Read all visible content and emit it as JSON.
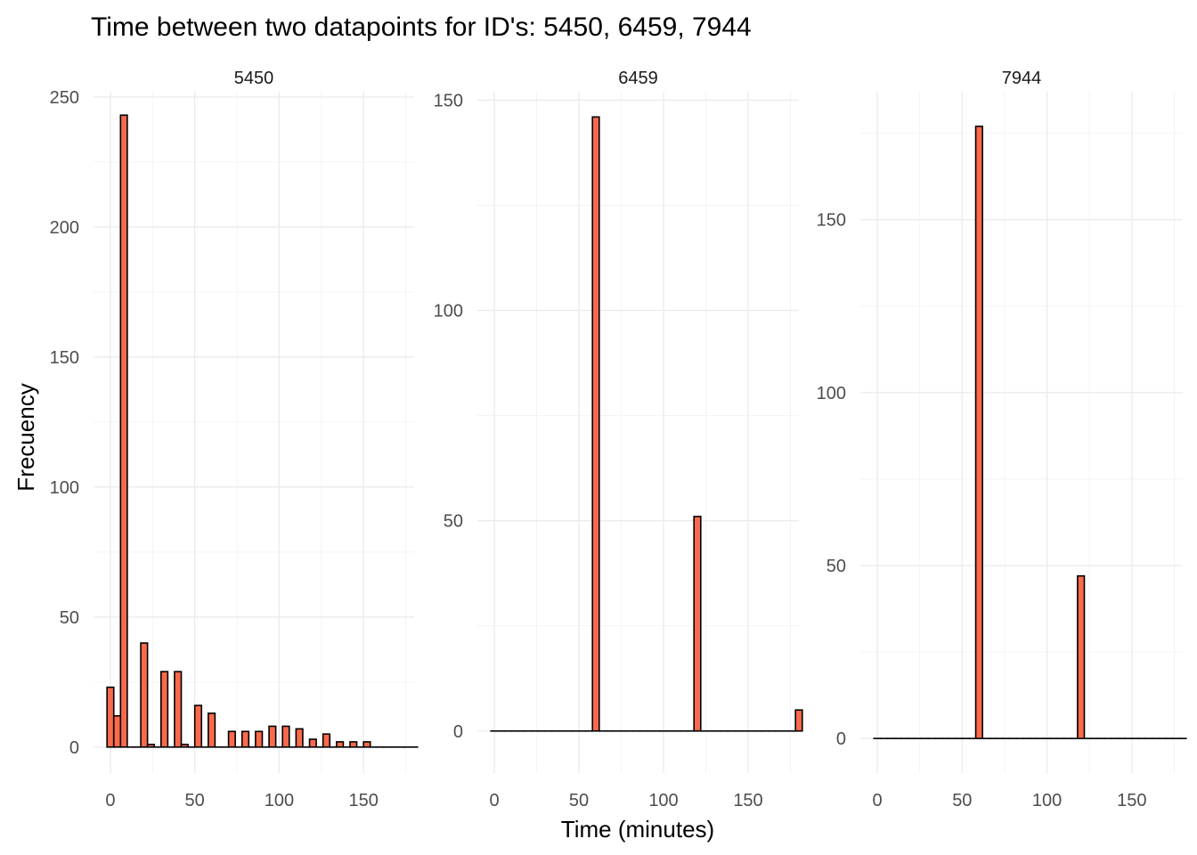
{
  "chart_data": {
    "type": "bar",
    "title": "Time between two datapoints for ID's: 5450, 6459, 7944",
    "xlabel": "Time (minutes)",
    "ylabel": "Frecuency",
    "bar_color": "#f86a4b",
    "grid": true,
    "xlim": [
      -10,
      180
    ],
    "panels": [
      {
        "name": "5450",
        "ylim": [
          -10,
          252
        ],
        "x_ticks": [
          0,
          50,
          100,
          150
        ],
        "y_ticks": [
          0,
          50,
          100,
          150,
          200,
          250
        ],
        "x": [
          0,
          4,
          8,
          12,
          16,
          20,
          24,
          28,
          32,
          36,
          40,
          44,
          48,
          52,
          56,
          60,
          64,
          68,
          72,
          76,
          80,
          84,
          88,
          92,
          96,
          100,
          104,
          108,
          112,
          116,
          120,
          124,
          128,
          132,
          136,
          140,
          144,
          148,
          152,
          156,
          160,
          164,
          168,
          172,
          176,
          180
        ],
        "values": [
          23,
          12,
          243,
          0,
          0,
          40,
          1,
          0,
          29,
          0,
          29,
          1,
          0,
          16,
          0,
          13,
          0,
          0,
          6,
          0,
          6,
          0,
          6,
          0,
          8,
          0,
          8,
          0,
          7,
          0,
          3,
          0,
          5,
          0,
          2,
          0,
          2,
          0,
          2,
          0,
          0,
          0,
          0,
          0,
          0,
          0
        ]
      },
      {
        "name": "6459",
        "ylim": [
          -10,
          152
        ],
        "x_ticks": [
          0,
          50,
          100,
          150
        ],
        "y_ticks": [
          0,
          50,
          100,
          150
        ],
        "x": [
          0,
          4,
          8,
          12,
          16,
          20,
          24,
          28,
          32,
          36,
          40,
          44,
          48,
          52,
          56,
          60,
          64,
          68,
          72,
          76,
          80,
          84,
          88,
          92,
          96,
          100,
          104,
          108,
          112,
          116,
          120,
          124,
          128,
          132,
          136,
          140,
          144,
          148,
          152,
          156,
          160,
          164,
          168,
          172,
          176,
          180
        ],
        "values": [
          0,
          0,
          0,
          0,
          0,
          0,
          0,
          0,
          0,
          0,
          0,
          0,
          0,
          0,
          0,
          146,
          0,
          0,
          0,
          0,
          0,
          0,
          0,
          0,
          0,
          0,
          0,
          0,
          0,
          0,
          51,
          0,
          0,
          0,
          0,
          0,
          0,
          0,
          0,
          0,
          0,
          0,
          0,
          0,
          0,
          5
        ]
      },
      {
        "name": "7944",
        "ylim": [
          -10,
          187
        ],
        "x_ticks": [
          0,
          50,
          100,
          150
        ],
        "y_ticks": [
          0,
          50,
          100,
          150
        ],
        "x": [
          0,
          4,
          8,
          12,
          16,
          20,
          24,
          28,
          32,
          36,
          40,
          44,
          48,
          52,
          56,
          60,
          64,
          68,
          72,
          76,
          80,
          84,
          88,
          92,
          96,
          100,
          104,
          108,
          112,
          116,
          120,
          124,
          128,
          132,
          136,
          140,
          144,
          148,
          152,
          156,
          160,
          164,
          168,
          172,
          176,
          180
        ],
        "values": [
          0,
          0,
          0,
          0,
          0,
          0,
          0,
          0,
          0,
          0,
          0,
          0,
          0,
          0,
          0,
          177,
          0,
          0,
          0,
          0,
          0,
          0,
          0,
          0,
          0,
          0,
          0,
          0,
          0,
          0,
          47,
          0,
          0,
          0,
          0,
          0,
          0,
          0,
          0,
          0,
          0,
          0,
          0,
          0,
          0,
          0
        ]
      }
    ]
  }
}
